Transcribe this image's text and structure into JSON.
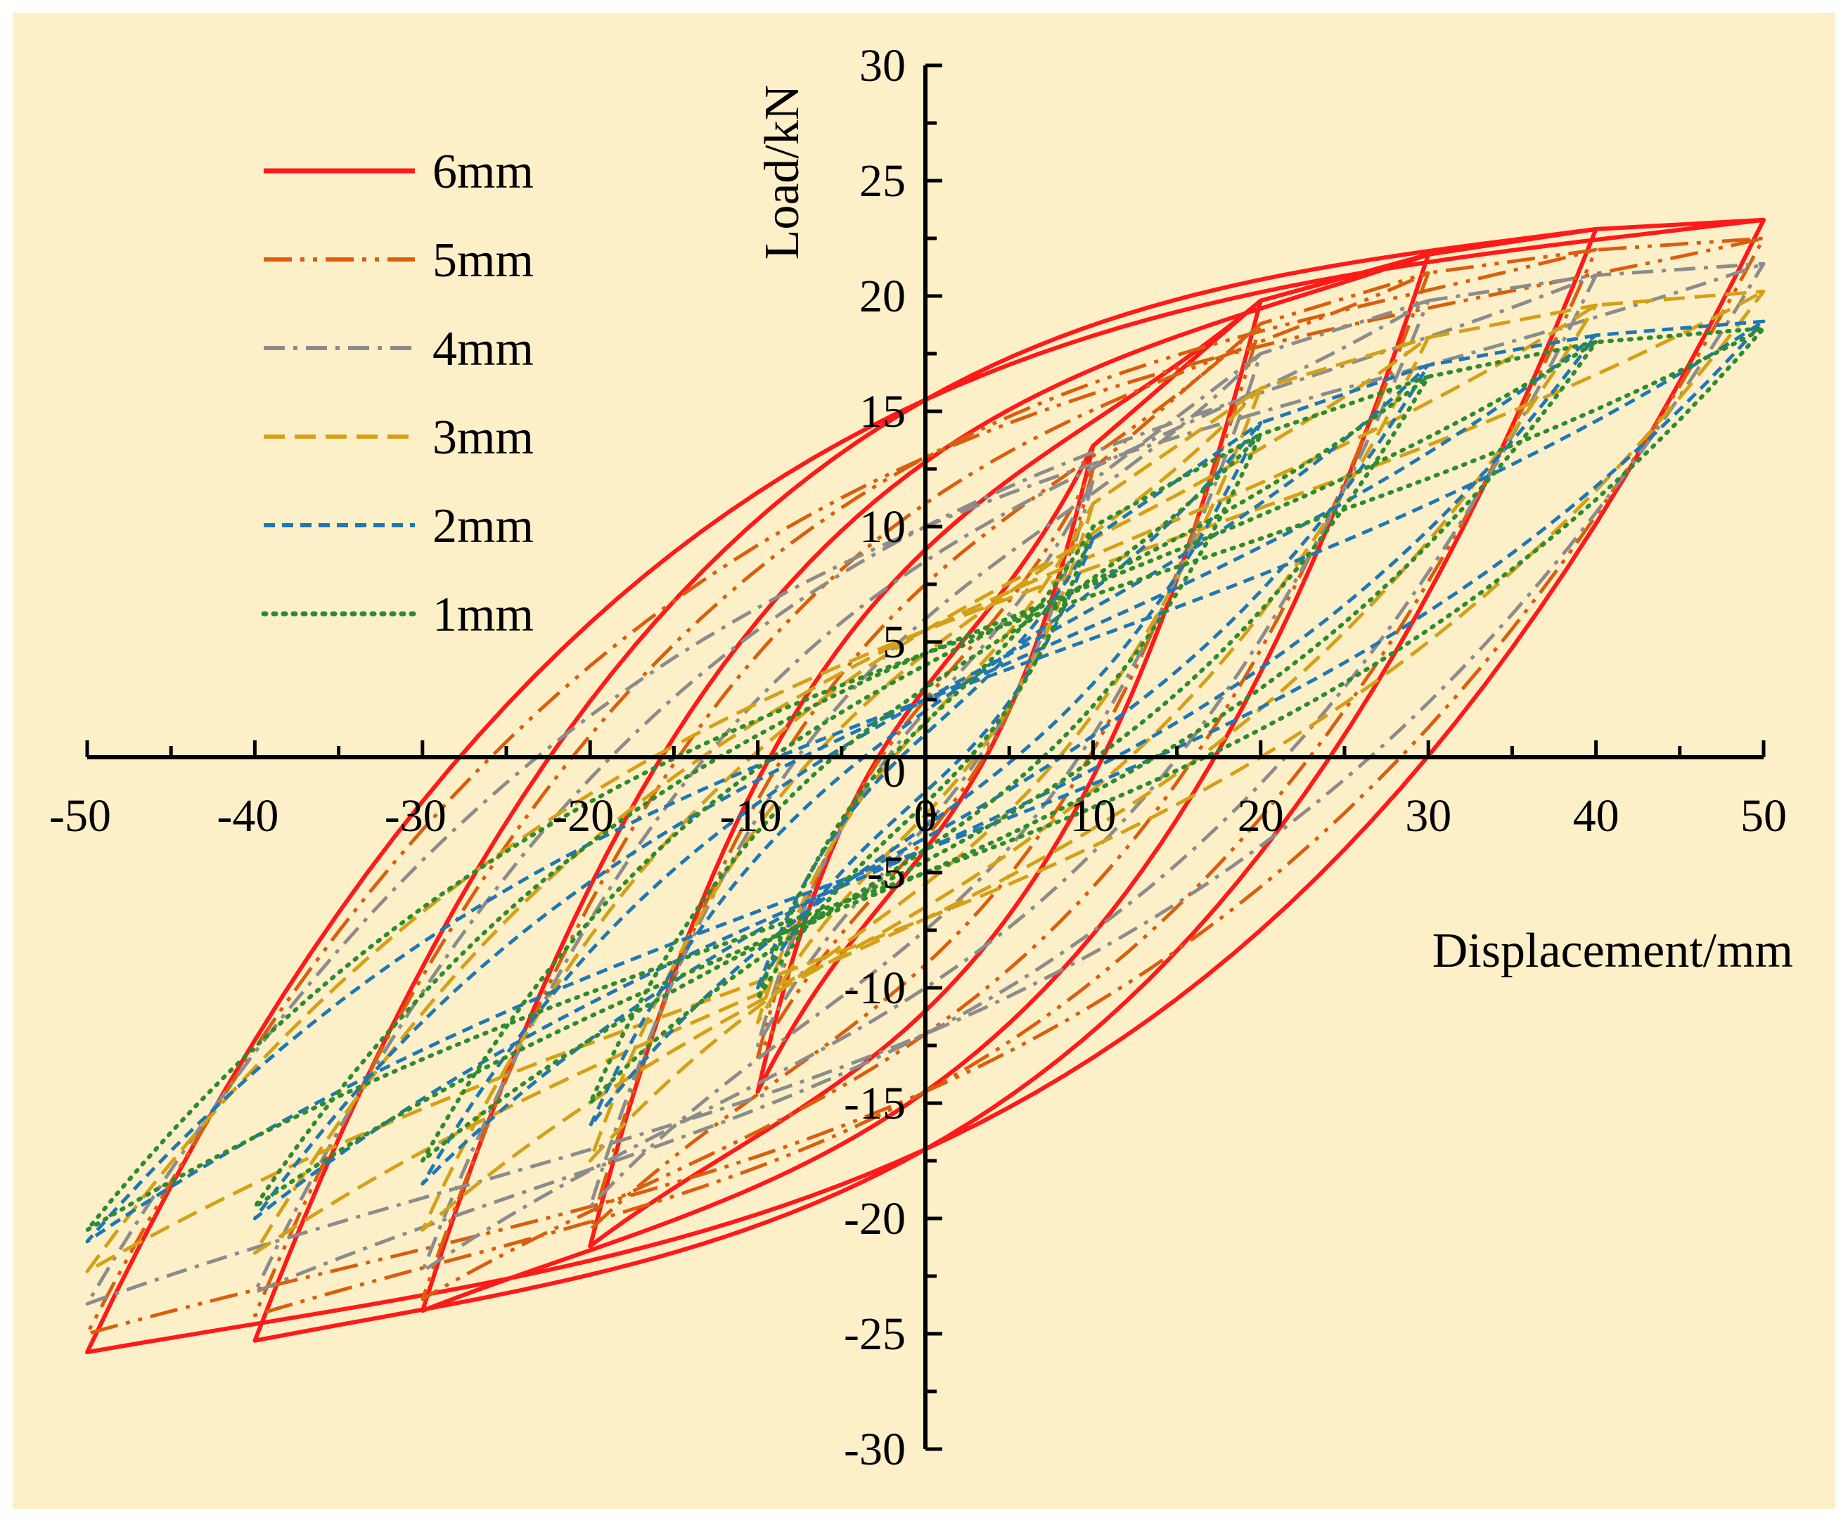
{
  "chart_data": {
    "type": "line",
    "title": "",
    "xlabel": "Displacement/mm",
    "ylabel": "Load/kN",
    "xlim": [
      -50,
      50
    ],
    "ylim": [
      -30,
      30
    ],
    "xticks": [
      -50,
      -40,
      -30,
      -20,
      -10,
      0,
      10,
      20,
      30,
      40,
      50
    ],
    "yticks": [
      30,
      25,
      20,
      15,
      10,
      5,
      0,
      -5,
      -10,
      -15,
      -20,
      -25,
      -30
    ],
    "tick_labels_x": [
      "-50",
      "-40",
      "-30",
      "-20",
      "-10",
      "0",
      "10",
      "20",
      "30",
      "40",
      "50"
    ],
    "tick_labels_y": [
      "30",
      "25",
      "20",
      "15",
      "10",
      "5",
      "0",
      "-5",
      "-10",
      "-15",
      "-20",
      "-25",
      "-30"
    ],
    "grid": false,
    "legend_position": "top-left",
    "background_color": "#FDF0C8",
    "amplitudes": [
      10,
      20,
      30,
      40,
      50
    ],
    "series": [
      {
        "name": "6mm",
        "color": "#FF1A1A",
        "dash": "solid",
        "width": 6,
        "peak_pos": [
          13.5,
          19.8,
          21.8,
          22.9,
          23.3
        ],
        "peak_neg": [
          -14.5,
          -21.2,
          -24.0,
          -25.3,
          -25.8
        ],
        "intercept_up": [
          3.0,
          9.0,
          12.8,
          15.5,
          15.5
        ],
        "intercept_down": [
          -4.0,
          -11.0,
          -14.5,
          -17.0,
          -17.0
        ]
      },
      {
        "name": "5mm",
        "color": "#D95F0E",
        "dash": "long-dash-dot-dot",
        "width": 5,
        "peak_pos": [
          12.5,
          18.8,
          21.0,
          22.0,
          22.5
        ],
        "peak_neg": [
          -13.0,
          -20.5,
          -23.5,
          -24.2,
          -25.0
        ],
        "intercept_up": [
          2.5,
          7.5,
          11.0,
          13.0,
          13.0
        ],
        "intercept_down": [
          -3.5,
          -9.0,
          -12.0,
          -14.5,
          -14.5
        ]
      },
      {
        "name": "4mm",
        "color": "#8C8C8C",
        "dash": "dash-dot",
        "width": 5,
        "peak_pos": [
          12.0,
          17.5,
          19.8,
          20.9,
          21.4
        ],
        "peak_neg": [
          -12.5,
          -19.5,
          -22.3,
          -23.2,
          -23.7
        ],
        "intercept_up": [
          2.0,
          6.0,
          8.5,
          10.0,
          10.0
        ],
        "intercept_down": [
          -3.0,
          -7.5,
          -10.0,
          -12.0,
          -12.0
        ]
      },
      {
        "name": "3mm",
        "color": "#D4A017",
        "dash": "dashed",
        "width": 5,
        "peak_pos": [
          11.0,
          16.0,
          18.2,
          19.6,
          20.2
        ],
        "peak_neg": [
          -11.5,
          -17.5,
          -20.5,
          -21.5,
          -22.3
        ],
        "intercept_up": [
          1.5,
          4.5,
          5.5,
          5.5,
          5.5
        ],
        "intercept_down": [
          -2.5,
          -5.5,
          -6.5,
          -7.0,
          -7.0
        ]
      },
      {
        "name": "2mm",
        "color": "#1F77B4",
        "dash": "short-dash",
        "width": 5,
        "peak_pos": [
          9.5,
          14.5,
          17.0,
          18.3,
          18.9
        ],
        "peak_neg": [
          -10.0,
          -16.0,
          -18.5,
          -20.0,
          -21.0
        ],
        "intercept_up": [
          1.0,
          2.0,
          2.5,
          2.5,
          2.5
        ],
        "intercept_down": [
          -1.5,
          -3.0,
          -3.5,
          -4.0,
          -4.0
        ]
      },
      {
        "name": "1mm",
        "color": "#2E8B2E",
        "dash": "dotted",
        "width": 6,
        "peak_pos": [
          10.0,
          14.0,
          16.5,
          18.0,
          18.6
        ],
        "peak_neg": [
          -10.5,
          -15.0,
          -17.5,
          -19.5,
          -20.5
        ],
        "intercept_up": [
          1.5,
          3.0,
          4.0,
          4.5,
          4.5
        ],
        "intercept_down": [
          -2.0,
          -4.0,
          -4.5,
          -5.0,
          -5.0
        ]
      }
    ]
  }
}
